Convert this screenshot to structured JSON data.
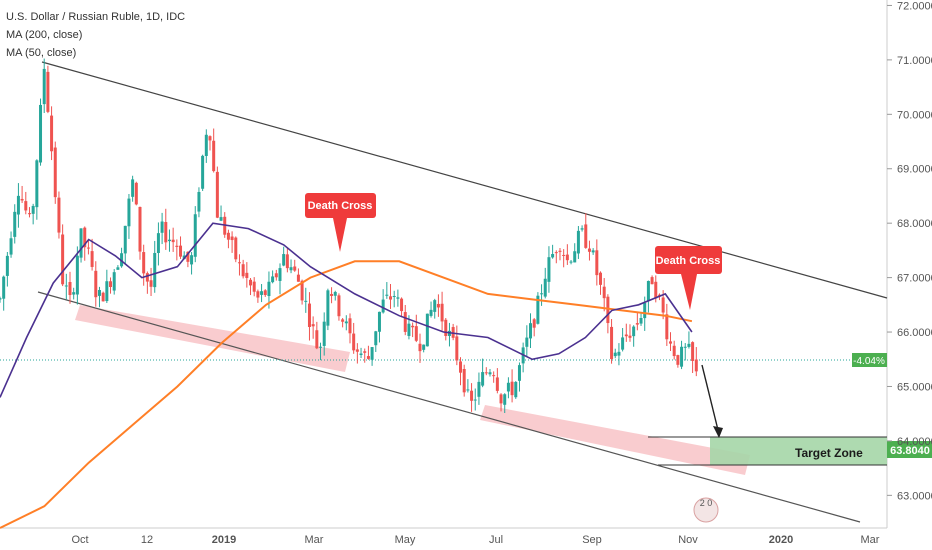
{
  "legend": {
    "title": "U.S. Dollar / Russian Ruble, 1D, IDC",
    "ma200": "MA (200, close)",
    "ma50": "MA (50, close)"
  },
  "colors": {
    "up": "#26a69a",
    "down": "#ef5350",
    "ma200": "#ff7f27",
    "ma50": "#4b3190",
    "channel": "#555555",
    "band": "#f4a3a8",
    "target": "#a5d6a7",
    "badge": "#ef3b3b",
    "price_badge": "#4caf50"
  },
  "chart_data": {
    "type": "candlestick",
    "title": "U.S. Dollar / Russian Ruble, 1D, IDC",
    "x_labels": [
      "Oct",
      "12",
      "2019",
      "Mar",
      "May",
      "Jul",
      "Sep",
      "Nov",
      "2020",
      "Mar"
    ],
    "y_ticks": [
      "72.0000",
      "71.0000",
      "70.0000",
      "69.0000",
      "68.0000",
      "67.0000",
      "66.0000",
      "65.0000",
      "64.0000",
      "63.0000"
    ],
    "ylim": [
      62.4,
      72.1
    ],
    "close_path": [
      [
        0.0,
        66.6
      ],
      [
        0.01,
        67.6
      ],
      [
        0.02,
        68.7
      ],
      [
        0.035,
        67.9
      ],
      [
        0.05,
        70.9
      ],
      [
        0.06,
        69.0
      ],
      [
        0.07,
        67.0
      ],
      [
        0.08,
        66.5
      ],
      [
        0.09,
        67.8
      ],
      [
        0.1,
        67.4
      ],
      [
        0.11,
        66.6
      ],
      [
        0.12,
        66.8
      ],
      [
        0.135,
        67.4
      ],
      [
        0.15,
        68.8
      ],
      [
        0.16,
        67.2
      ],
      [
        0.17,
        66.8
      ],
      [
        0.18,
        67.9
      ],
      [
        0.2,
        67.6
      ],
      [
        0.215,
        67.2
      ],
      [
        0.225,
        68.8
      ],
      [
        0.235,
        70.0
      ],
      [
        0.245,
        68.2
      ],
      [
        0.26,
        67.6
      ],
      [
        0.27,
        67.2
      ],
      [
        0.29,
        66.6
      ],
      [
        0.305,
        66.8
      ],
      [
        0.32,
        67.4
      ],
      [
        0.335,
        67.0
      ],
      [
        0.345,
        66.5
      ],
      [
        0.36,
        65.6
      ],
      [
        0.37,
        66.9
      ],
      [
        0.385,
        66.3
      ],
      [
        0.4,
        65.7
      ],
      [
        0.415,
        65.5
      ],
      [
        0.43,
        66.5
      ],
      [
        0.445,
        66.7
      ],
      [
        0.46,
        66.0
      ],
      [
        0.475,
        65.8
      ],
      [
        0.49,
        66.6
      ],
      [
        0.5,
        66.2
      ],
      [
        0.51,
        65.8
      ],
      [
        0.52,
        65.3
      ],
      [
        0.53,
        64.6
      ],
      [
        0.545,
        65.2
      ],
      [
        0.555,
        65.4
      ],
      [
        0.565,
        64.8
      ],
      [
        0.58,
        65.0
      ],
      [
        0.59,
        65.6
      ],
      [
        0.605,
        66.4
      ],
      [
        0.615,
        67.1
      ],
      [
        0.63,
        67.7
      ],
      [
        0.64,
        67.3
      ],
      [
        0.655,
        67.8
      ],
      [
        0.665,
        67.6
      ],
      [
        0.68,
        66.6
      ],
      [
        0.69,
        65.5
      ],
      [
        0.705,
        65.9
      ],
      [
        0.72,
        66.2
      ],
      [
        0.735,
        67.0
      ],
      [
        0.745,
        66.5
      ],
      [
        0.755,
        65.8
      ],
      [
        0.765,
        65.5
      ],
      [
        0.775,
        65.7
      ],
      [
        0.785,
        65.2
      ]
    ],
    "ma200": [
      [
        0.0,
        62.4
      ],
      [
        0.05,
        62.8
      ],
      [
        0.1,
        63.6
      ],
      [
        0.15,
        64.3
      ],
      [
        0.2,
        65.0
      ],
      [
        0.25,
        65.8
      ],
      [
        0.3,
        66.5
      ],
      [
        0.35,
        67.0
      ],
      [
        0.4,
        67.3
      ],
      [
        0.45,
        67.3
      ],
      [
        0.5,
        67.0
      ],
      [
        0.55,
        66.7
      ],
      [
        0.6,
        66.6
      ],
      [
        0.65,
        66.5
      ],
      [
        0.7,
        66.4
      ],
      [
        0.75,
        66.3
      ],
      [
        0.78,
        66.2
      ]
    ],
    "ma50": [
      [
        0.0,
        64.8
      ],
      [
        0.03,
        65.9
      ],
      [
        0.06,
        66.9
      ],
      [
        0.1,
        67.7
      ],
      [
        0.13,
        67.4
      ],
      [
        0.16,
        67.0
      ],
      [
        0.2,
        67.2
      ],
      [
        0.24,
        68.0
      ],
      [
        0.28,
        67.9
      ],
      [
        0.32,
        67.6
      ],
      [
        0.35,
        67.2
      ],
      [
        0.4,
        66.7
      ],
      [
        0.45,
        66.3
      ],
      [
        0.5,
        66.0
      ],
      [
        0.55,
        65.9
      ],
      [
        0.6,
        65.5
      ],
      [
        0.63,
        65.6
      ],
      [
        0.66,
        65.9
      ],
      [
        0.69,
        66.4
      ],
      [
        0.72,
        66.5
      ],
      [
        0.75,
        66.7
      ],
      [
        0.78,
        66.0
      ]
    ],
    "annotations": [
      "Death Cross",
      "Death Cross",
      "Target Zone"
    ],
    "price_change": "-4.04%",
    "target_price": "63.8040"
  },
  "watermark": "2 0"
}
